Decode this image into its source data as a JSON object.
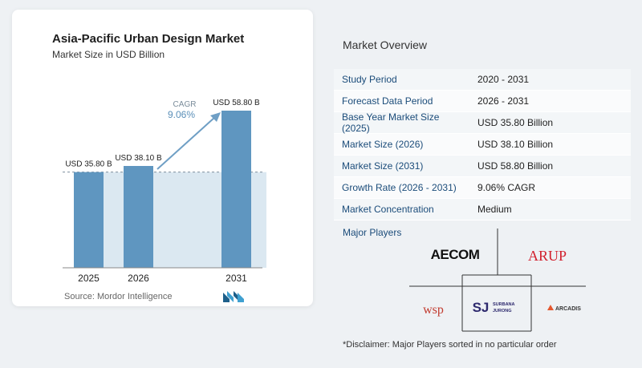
{
  "card": {
    "title": "Asia-Pacific Urban Design Market",
    "subtitle": "Market Size in USD Billion",
    "source": "Source:  Mordor Intelligence"
  },
  "chart_data": {
    "type": "bar",
    "categories": [
      "2025",
      "2026",
      "2031"
    ],
    "values": [
      35.8,
      38.1,
      58.8
    ],
    "data_labels": [
      "USD 35.80 B",
      "USD 38.10 B",
      "USD 58.80 B"
    ],
    "cagr_label": "CAGR",
    "cagr_value": "9.06%",
    "title": "Asia-Pacific Urban Design Market",
    "subtitle": "Market Size in USD Billion",
    "ylim": [
      0,
      58.8
    ],
    "grid": false,
    "colors": {
      "bar": "#5f96c0",
      "band": "#dbe8f1",
      "arrow": "#6f9fc5"
    }
  },
  "overview": {
    "title": "Market Overview",
    "rows": [
      {
        "label": "Study Period",
        "value": "2020 - 2031"
      },
      {
        "label": "Forecast Data Period",
        "value": "2026 - 2031"
      },
      {
        "label": "Base Year Market Size (2025)",
        "value": "USD 35.80 Billion"
      },
      {
        "label": "Market Size (2026)",
        "value": "USD 38.10 Billion"
      },
      {
        "label": "Market Size (2031)",
        "value": "USD 58.80 Billion"
      },
      {
        "label": "Growth Rate (2026 - 2031)",
        "value": "9.06% CAGR"
      },
      {
        "label": "Market Concentration",
        "value": "Medium"
      }
    ]
  },
  "players": {
    "title": "Major Players",
    "aecom": "AECOM",
    "arup": "ARUP",
    "wsp": "wsp",
    "surbana_mark": "SJ",
    "surbana_line1": "SURBANA",
    "surbana_line2": "JURONG",
    "arcadis": "ARCADIS"
  },
  "disclaimer": "*Disclaimer: Major Players sorted in no particular order"
}
